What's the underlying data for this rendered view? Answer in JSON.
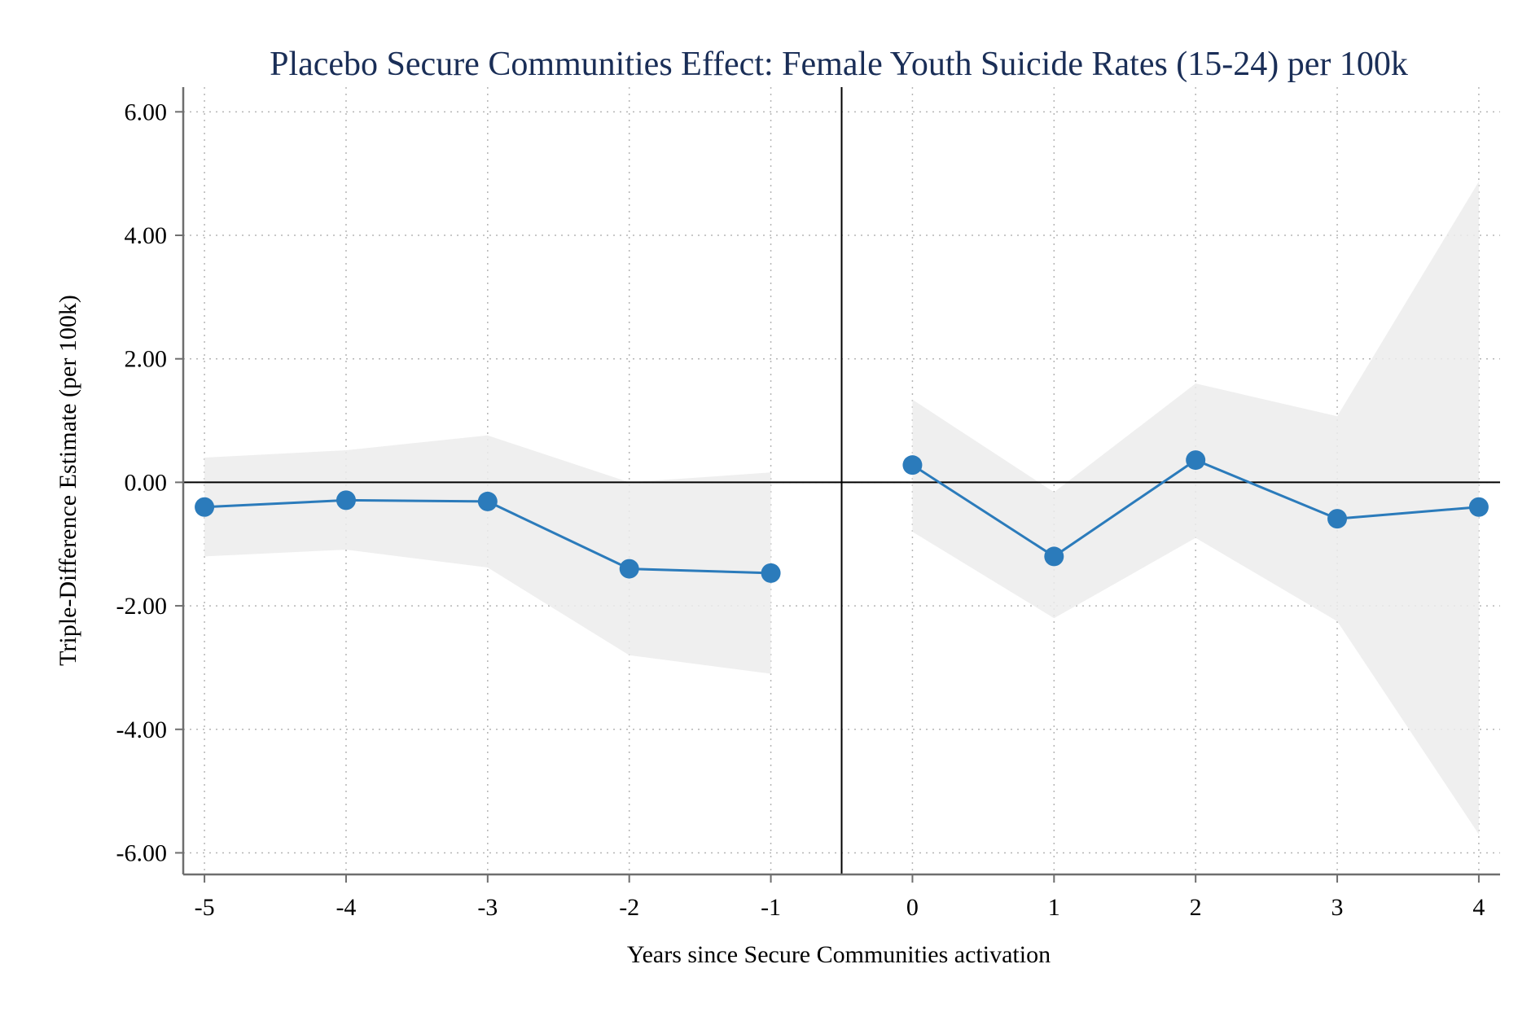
{
  "chart_data": {
    "type": "line",
    "title": "Placebo Secure Communities Effect: Female Youth Suicide Rates (15-24) per 100k",
    "xlabel": "Years since Secure Communities activation",
    "ylabel": "Triple-Difference Estimate (per 100k)",
    "x_ticks": [
      "-5",
      "-4",
      "-3",
      "-2",
      "-1",
      "0",
      "1",
      "2",
      "3",
      "4"
    ],
    "y_ticks": [
      "6.00",
      "4.00",
      "2.00",
      "0.00",
      "-2.00",
      "-4.00",
      "-6.00"
    ],
    "xlim": [
      -5.15,
      4.15
    ],
    "ylim": [
      -6.35,
      6.4
    ],
    "grid": true,
    "vertical_reference_x": -0.5,
    "horizontal_reference_y": 0,
    "series_color": "#2b7bbb",
    "band_color": "#ececec",
    "segments": [
      {
        "x": [
          -5,
          -4,
          -3,
          -2,
          -1
        ],
        "y": [
          -0.4,
          -0.29,
          -0.31,
          -1.4,
          -1.47
        ],
        "ci_lower": [
          -1.2,
          -1.09,
          -1.38,
          -2.8,
          -3.1
        ],
        "ci_upper": [
          0.4,
          0.52,
          0.76,
          0.0,
          0.16
        ]
      },
      {
        "x": [
          0,
          1,
          2,
          3,
          4
        ],
        "y": [
          0.28,
          -1.2,
          0.36,
          -0.59,
          -0.4
        ],
        "ci_lower": [
          -0.8,
          -2.2,
          -0.9,
          -2.25,
          -5.7
        ],
        "ci_upper": [
          1.34,
          -0.16,
          1.6,
          1.07,
          4.87
        ]
      }
    ]
  }
}
